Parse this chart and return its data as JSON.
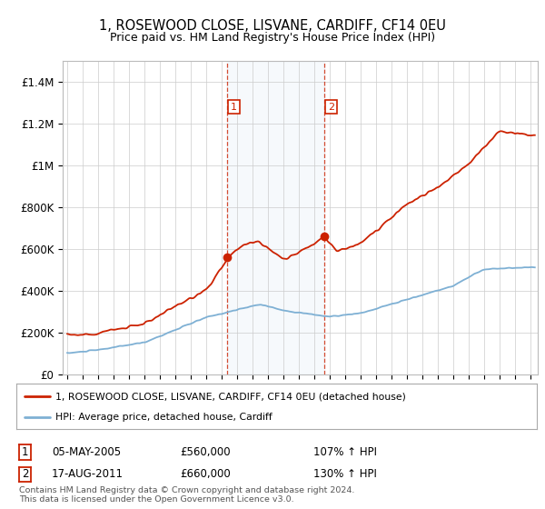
{
  "title": "1, ROSEWOOD CLOSE, LISVANE, CARDIFF, CF14 0EU",
  "subtitle": "Price paid vs. HM Land Registry's House Price Index (HPI)",
  "title_fontsize": 10.5,
  "subtitle_fontsize": 9,
  "ylim": [
    0,
    1500000
  ],
  "yticks": [
    0,
    200000,
    400000,
    600000,
    800000,
    1000000,
    1200000,
    1400000
  ],
  "ytick_labels": [
    "£0",
    "£200K",
    "£400K",
    "£600K",
    "£800K",
    "£1M",
    "£1.2M",
    "£1.4M"
  ],
  "grid_color": "#cccccc",
  "sale1": {
    "date_num": 2005.35,
    "price": 560000,
    "label": "1",
    "date_str": "05-MAY-2005",
    "hpi_pct": "107%"
  },
  "sale2": {
    "date_num": 2011.63,
    "price": 660000,
    "label": "2",
    "date_str": "17-AUG-2011",
    "hpi_pct": "130%"
  },
  "legend_line1": "1, ROSEWOOD CLOSE, LISVANE, CARDIFF, CF14 0EU (detached house)",
  "legend_line2": "HPI: Average price, detached house, Cardiff",
  "footer1": "Contains HM Land Registry data © Crown copyright and database right 2024.",
  "footer2": "This data is licensed under the Open Government Licence v3.0.",
  "property_line_color": "#cc2200",
  "hpi_line_color": "#7eb0d4",
  "xmin": 1994.7,
  "xmax": 2025.5
}
